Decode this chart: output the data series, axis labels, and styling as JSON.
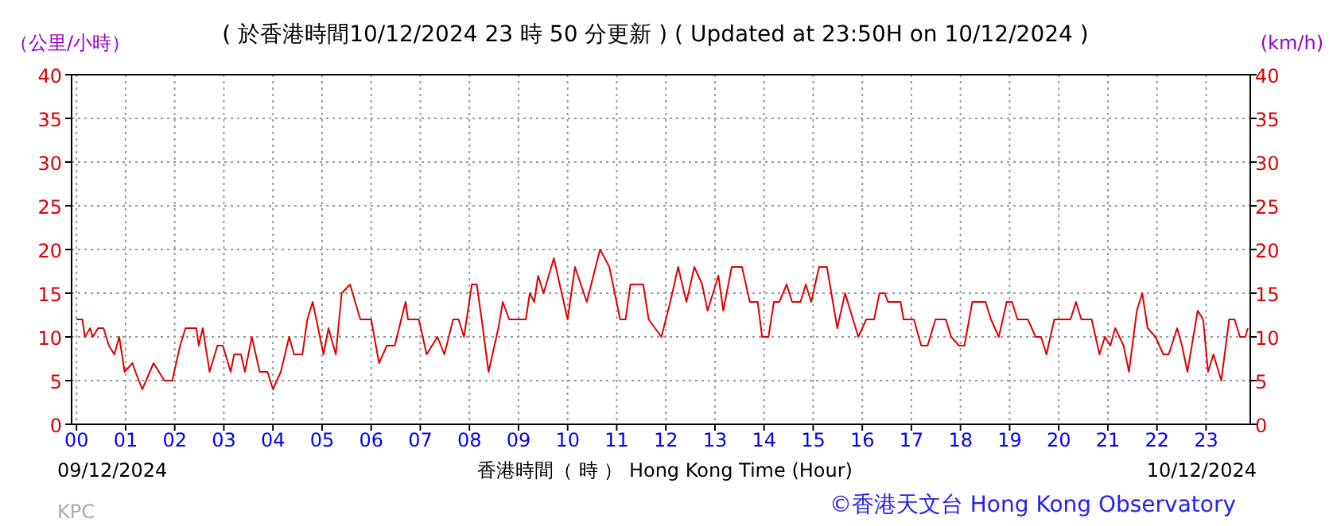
{
  "chart_data": {
    "type": "line",
    "title": "( 於香港時間10/12/2024 23 時 50 分更新 ) ( Updated at 23:50H on 10/12/2024 )",
    "ylabel": "（公里/小時）",
    "y2label": "(km/h)",
    "xlabel": "香港時間（ 時 ） Hong Kong Time (Hour)",
    "annotations": [
      "09/12/2024",
      "10/12/2024",
      "KPC",
      "©香港天文台 Hong Kong Observatory"
    ],
    "xlim": [
      -0.1,
      23.9
    ],
    "xticks": [
      {
        "value": 0,
        "label": "00"
      },
      {
        "value": 1,
        "label": "01"
      },
      {
        "value": 2,
        "label": "02"
      },
      {
        "value": 3,
        "label": "03"
      },
      {
        "value": 4,
        "label": "04"
      },
      {
        "value": 5,
        "label": "05"
      },
      {
        "value": 6,
        "label": "06"
      },
      {
        "value": 7,
        "label": "07"
      },
      {
        "value": 8,
        "label": "08"
      },
      {
        "value": 9,
        "label": "09"
      },
      {
        "value": 10,
        "label": "10"
      },
      {
        "value": 11,
        "label": "11"
      },
      {
        "value": 12,
        "label": "12"
      },
      {
        "value": 13,
        "label": "13"
      },
      {
        "value": 14,
        "label": "14"
      },
      {
        "value": 15,
        "label": "15"
      },
      {
        "value": 16,
        "label": "16"
      },
      {
        "value": 17,
        "label": "17"
      },
      {
        "value": 18,
        "label": "18"
      },
      {
        "value": 19,
        "label": "19"
      },
      {
        "value": 20,
        "label": "20"
      },
      {
        "value": 21,
        "label": "21"
      },
      {
        "value": 22,
        "label": "22"
      },
      {
        "value": 23,
        "label": "23"
      }
    ],
    "ylim": [
      0,
      40
    ],
    "yticks": [
      0,
      5,
      10,
      15,
      20,
      25,
      30,
      35,
      40
    ],
    "y2lim": [
      0,
      40
    ],
    "y2ticks": [
      0,
      5,
      10,
      15,
      20,
      25,
      30,
      35,
      40
    ],
    "grid": true,
    "series": [
      {
        "color": "#e00000",
        "x": [
          0,
          0.12,
          0.17,
          0.28,
          0.33,
          0.44,
          0.55,
          0.66,
          0.77,
          0.87,
          0.98,
          1.14,
          1.2,
          1.34,
          1.57,
          1.79,
          1.95,
          2.11,
          2.22,
          2.44,
          2.49,
          2.57,
          2.71,
          2.87,
          2.98,
          3.14,
          3.21,
          3.35,
          3.43,
          3.57,
          3.73,
          3.89,
          4.0,
          4.16,
          4.33,
          4.43,
          4.6,
          4.7,
          4.81,
          5.03,
          5.13,
          5.28,
          5.4,
          5.57,
          5.78,
          6.0,
          6.16,
          6.32,
          6.48,
          6.7,
          6.75,
          6.97,
          7.13,
          7.35,
          7.49,
          7.67,
          7.78,
          7.89,
          8.05,
          8.15,
          8.25,
          8.39,
          8.59,
          8.68,
          8.81,
          9.15,
          9.23,
          9.32,
          9.4,
          9.51,
          9.72,
          9.88,
          10.0,
          10.15,
          10.39,
          10.66,
          10.85,
          11.07,
          11.18,
          11.28,
          11.54,
          11.65,
          11.91,
          12.09,
          12.25,
          12.42,
          12.58,
          12.74,
          12.85,
          13.07,
          13.17,
          13.34,
          13.55,
          13.71,
          13.87,
          13.96,
          14.09,
          14.2,
          14.31,
          14.46,
          14.57,
          14.74,
          14.85,
          14.96,
          15.12,
          15.28,
          15.49,
          15.65,
          15.81,
          15.92,
          16.08,
          16.24,
          16.35,
          16.46,
          16.52,
          16.78,
          16.84,
          17.05,
          17.2,
          17.33,
          17.49,
          17.7,
          17.81,
          17.97,
          18.08,
          18.24,
          18.51,
          18.62,
          18.78,
          18.94,
          19.05,
          19.16,
          19.37,
          19.53,
          19.64,
          19.75,
          19.91,
          20.24,
          20.35,
          20.46,
          20.67,
          20.83,
          20.94,
          21.05,
          21.15,
          21.32,
          21.43,
          21.59,
          21.7,
          21.81,
          21.97,
          22.13,
          22.24,
          22.41,
          22.51,
          22.62,
          22.83,
          22.94,
          23.04,
          23.15,
          23.31,
          23.47,
          23.58,
          23.69,
          23.8,
          23.85
        ],
        "values": [
          12,
          12,
          10,
          11,
          10,
          11,
          11,
          9,
          8,
          10,
          6,
          7,
          6,
          4,
          7,
          5,
          5,
          9,
          11,
          11,
          9,
          11,
          6,
          9,
          9,
          6,
          8,
          8,
          6,
          10,
          6,
          6,
          4,
          6,
          10,
          8,
          8,
          12,
          14,
          8,
          11,
          8,
          15,
          16,
          12,
          12,
          7,
          9,
          9,
          14,
          12,
          12,
          8,
          10,
          8,
          12,
          12,
          10,
          16,
          16,
          12,
          6,
          11,
          14,
          12,
          12,
          15,
          14,
          17,
          15,
          19,
          15,
          12,
          18,
          14,
          20,
          18,
          12,
          12,
          16,
          16,
          12,
          10,
          14,
          18,
          14,
          18,
          16,
          13,
          17,
          13,
          18,
          18,
          14,
          14,
          10,
          10,
          14,
          14,
          16,
          14,
          14,
          16,
          14,
          18,
          18,
          11,
          15,
          12,
          10,
          12,
          12,
          15,
          15,
          14,
          14,
          12,
          12,
          9,
          9,
          12,
          12,
          10,
          9,
          9,
          14,
          14,
          12,
          10,
          14,
          14,
          12,
          12,
          10,
          10,
          8,
          12,
          12,
          14,
          12,
          12,
          8,
          10,
          9,
          11,
          9,
          6,
          13,
          15,
          11,
          10,
          8,
          8,
          11,
          9,
          6,
          13,
          12,
          6,
          8,
          5,
          12,
          12,
          10,
          10,
          11
        ]
      }
    ]
  }
}
